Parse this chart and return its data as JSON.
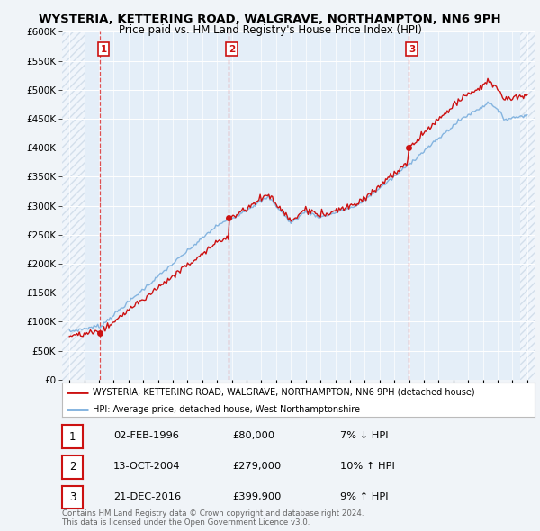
{
  "title": "WYSTERIA, KETTERING ROAD, WALGRAVE, NORTHAMPTON, NN6 9PH",
  "subtitle": "Price paid vs. HM Land Registry's House Price Index (HPI)",
  "red_label": "WYSTERIA, KETTERING ROAD, WALGRAVE, NORTHAMPTON, NN6 9PH (detached house)",
  "blue_label": "HPI: Average price, detached house, West Northamptonshire",
  "sales": [
    {
      "num": 1,
      "date": "02-FEB-1996",
      "year": 1996.08,
      "price": 80000,
      "hpi": "7% ↓ HPI"
    },
    {
      "num": 2,
      "date": "13-OCT-2004",
      "year": 2004.78,
      "price": 279000,
      "hpi": "10% ↑ HPI"
    },
    {
      "num": 3,
      "date": "21-DEC-2016",
      "year": 2016.97,
      "price": 399900,
      "hpi": "9% ↑ HPI"
    }
  ],
  "copyright": "Contains HM Land Registry data © Crown copyright and database right 2024.\nThis data is licensed under the Open Government Licence v3.0.",
  "ylim": [
    0,
    600000
  ],
  "yticks": [
    0,
    50000,
    100000,
    150000,
    200000,
    250000,
    300000,
    350000,
    400000,
    450000,
    500000,
    550000,
    600000
  ],
  "bg_color": "#f0f4f8",
  "plot_bg": "#e4eef8",
  "red_color": "#cc1111",
  "blue_color": "#7aaedd"
}
